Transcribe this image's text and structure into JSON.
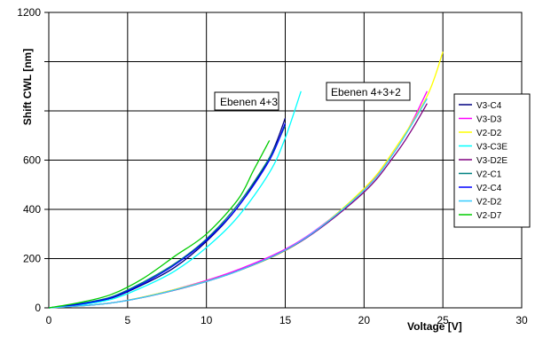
{
  "chart_data": {
    "type": "line",
    "xlabel": "Voltage [V]",
    "ylabel": "Shift CWL [nm]",
    "xlim": [
      0,
      30
    ],
    "ylim": [
      0,
      1200
    ],
    "x_ticks": [
      "0",
      "5",
      "10",
      "15",
      "20",
      "25",
      "30"
    ],
    "y_ticks": [
      {
        "value": 0,
        "label": "0"
      },
      {
        "value": 200,
        "label": "200"
      },
      {
        "value": 400,
        "label": "400"
      },
      {
        "value": 600,
        "label": "600"
      },
      {
        "value": 800,
        "label": ""
      },
      {
        "value": 1000,
        "label": ""
      },
      {
        "value": 1200,
        "label": "1200"
      }
    ],
    "grid": true,
    "legend_position": "right",
    "annotations": [
      {
        "text": "Ebenen 4+3"
      },
      {
        "text": "Ebenen 4+3+2"
      }
    ],
    "series": [
      {
        "name": "V3-C4",
        "color": "#000080",
        "x": [
          0,
          2,
          4,
          6,
          8,
          10,
          12,
          14,
          15
        ],
        "y": [
          0,
          15,
          40,
          95,
          165,
          270,
          410,
          610,
          770
        ]
      },
      {
        "name": "V3-D3",
        "color": "#ff00ff",
        "x": [
          0,
          4,
          8,
          12,
          16,
          20,
          22,
          23,
          24
        ],
        "y": [
          0,
          20,
          75,
          155,
          275,
          480,
          640,
          750,
          880
        ]
      },
      {
        "name": "V2-D2",
        "color": "#ffff00",
        "x": [
          0,
          4,
          8,
          12,
          16,
          20,
          22,
          24,
          25
        ],
        "y": [
          0,
          20,
          75,
          150,
          270,
          485,
          650,
          860,
          1040
        ]
      },
      {
        "name": "V3-C3E",
        "color": "#00ffff",
        "x": [
          0,
          2,
          4,
          6,
          8,
          10,
          12,
          14,
          15,
          16
        ],
        "y": [
          0,
          12,
          35,
          85,
          150,
          245,
          370,
          550,
          690,
          880
        ]
      },
      {
        "name": "V3-D2E",
        "color": "#800080",
        "x": [
          0,
          4,
          8,
          12,
          16,
          20,
          22,
          23,
          24
        ],
        "y": [
          0,
          20,
          72,
          150,
          270,
          470,
          625,
          720,
          830
        ]
      },
      {
        "name": "V2-C1",
        "color": "#008080",
        "x": [
          0,
          2,
          4,
          6,
          8,
          10,
          12,
          14,
          15
        ],
        "y": [
          0,
          18,
          45,
          105,
          180,
          280,
          420,
          610,
          740
        ]
      },
      {
        "name": "V2-C4",
        "color": "#0000ff",
        "x": [
          0,
          2,
          4,
          6,
          8,
          10,
          12,
          14,
          15
        ],
        "y": [
          0,
          15,
          42,
          100,
          175,
          275,
          410,
          600,
          750
        ]
      },
      {
        "name": "V2-D2",
        "color": "#33ccff",
        "x": [
          0,
          4,
          8,
          12,
          16,
          20,
          22,
          24
        ],
        "y": [
          0,
          20,
          73,
          150,
          272,
          478,
          640,
          850
        ]
      },
      {
        "name": "V2-D7",
        "color": "#00cc00",
        "x": [
          0,
          2,
          4,
          6,
          8,
          10,
          12,
          13,
          14
        ],
        "y": [
          0,
          22,
          55,
          120,
          210,
          300,
          440,
          560,
          680
        ]
      }
    ]
  }
}
